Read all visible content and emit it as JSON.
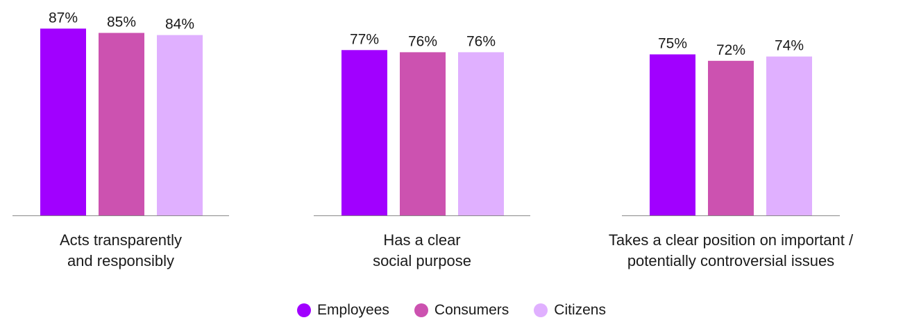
{
  "chart_data": {
    "type": "bar",
    "categories": [
      [
        "Acts transparently",
        "and responsibly"
      ],
      [
        "Has a clear",
        "social purpose"
      ],
      [
        "Takes a clear position on important /",
        "potentially controversial issues"
      ]
    ],
    "series": [
      {
        "name": "Employees",
        "color": "#a100ff",
        "values": [
          87,
          77,
          75
        ]
      },
      {
        "name": "Consumers",
        "color": "#cc52b0",
        "values": [
          85,
          76,
          72
        ]
      },
      {
        "name": "Citizens",
        "color": "#e0b0ff",
        "values": [
          84,
          76,
          74
        ]
      }
    ],
    "value_suffix": "%",
    "ylim": [
      0,
      100
    ],
    "grid": false,
    "legend_position": "bottom-center"
  }
}
